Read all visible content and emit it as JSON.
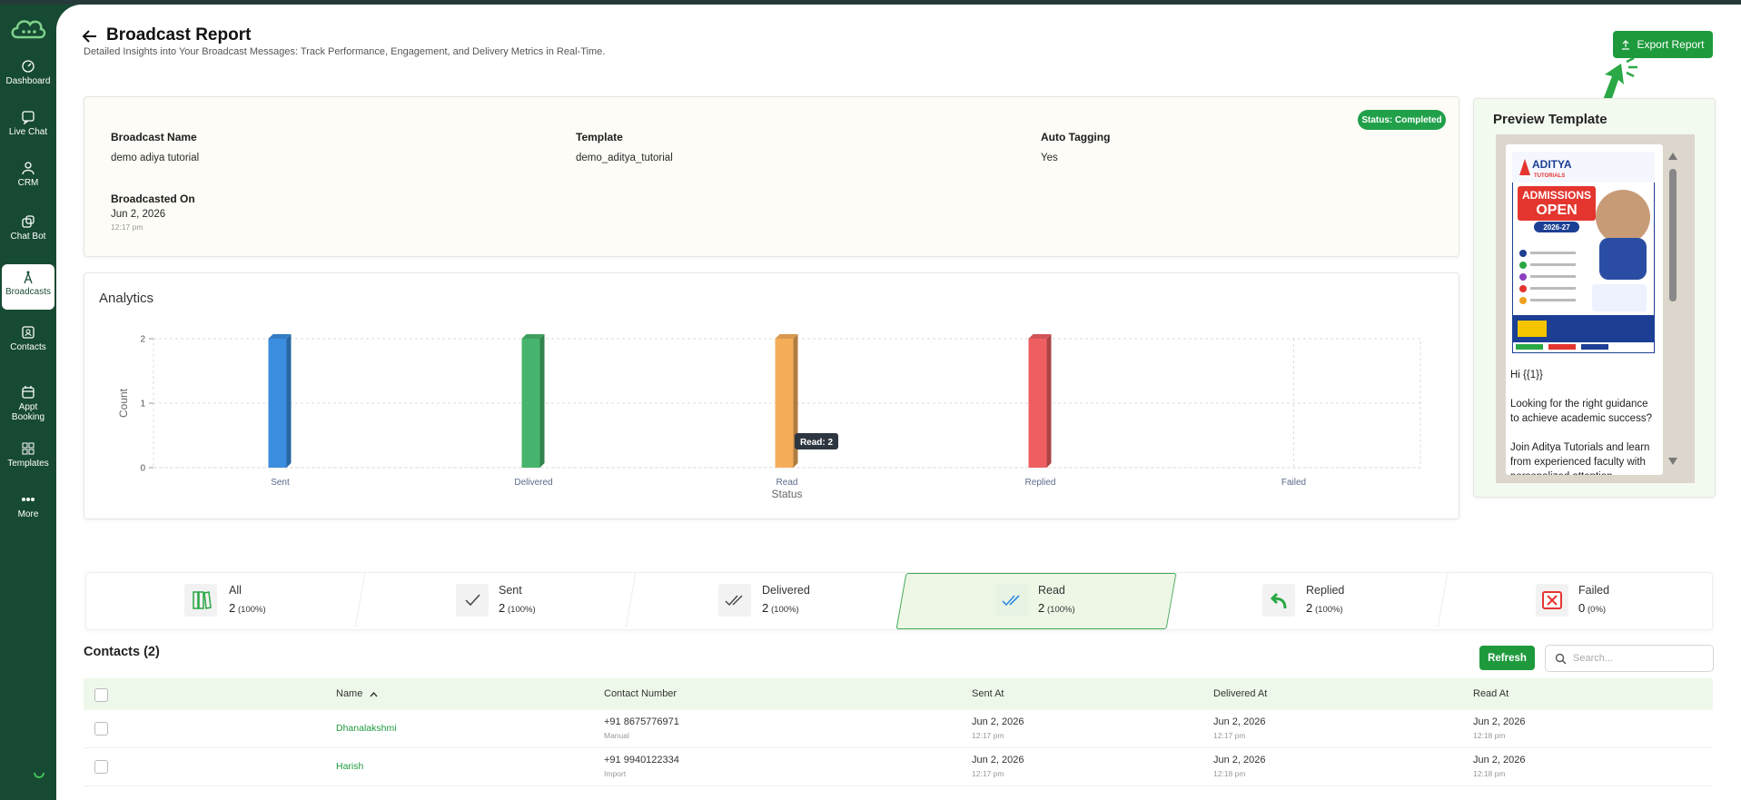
{
  "sidebar": {
    "items": [
      "Dashboard",
      "Live Chat",
      "CRM",
      "Chat Bot",
      "Broadcasts",
      "Contacts",
      "Appt Booking",
      "Templates",
      "More"
    ],
    "active": 4
  },
  "header": {
    "title": "Broadcast Report",
    "subtitle": "Detailed Insights into Your Broadcast Messages: Track Performance, Engagement, and Delivery Metrics in Real-Time.",
    "export_button": "Export Report"
  },
  "details": {
    "status": "Status: Completed",
    "fields": [
      {
        "label": "Broadcast Name",
        "value": "demo adiya tutorial"
      },
      {
        "label": "Template",
        "value": "demo_aditya_tutorial"
      },
      {
        "label": "Auto Tagging",
        "value": "Yes"
      },
      {
        "label": "Broadcasted On",
        "value": "Jun 2, 2026",
        "time": "12:17 pm"
      }
    ]
  },
  "chart_data": {
    "type": "bar",
    "title": "Analytics",
    "x_label": "Status",
    "y_label": "Count",
    "categories": [
      "Sent",
      "Delivered",
      "Read",
      "Replied",
      "Failed"
    ],
    "values": [
      2,
      2,
      2,
      2,
      0
    ],
    "colors": [
      "#3b8de0",
      "#46b46c",
      "#f5ad5a",
      "#ef5f62",
      "#9e9e9e"
    ],
    "ylim": [
      0,
      2
    ],
    "yticks": [
      0,
      1,
      2
    ],
    "grid": true,
    "annotation": "Read: 2"
  },
  "preview": {
    "title": "Preview Template",
    "poster": [
      "ADITYA",
      "TUTORIALS",
      "ADMISSIONS",
      "OPEN",
      "2026-27"
    ],
    "message": [
      "Hi {{1}}",
      "Looking for the right guidance to achieve academic success?",
      "Join Aditya Tutorials and learn from experienced faculty with personalized attention."
    ]
  },
  "tabs": [
    {
      "label": "All",
      "count": 2,
      "percent": "(100%)"
    },
    {
      "label": "Sent",
      "count": 2,
      "percent": "(100%)"
    },
    {
      "label": "Delivered",
      "count": 2,
      "percent": "(100%)"
    },
    {
      "label": "Read",
      "count": 2,
      "percent": "(100%)"
    },
    {
      "label": "Replied",
      "count": 2,
      "percent": "(100%)"
    },
    {
      "label": "Failed",
      "count": 0,
      "percent": "(0%)"
    }
  ],
  "active_tab": 3,
  "contacts": {
    "title": "Contacts (2)",
    "refresh_button": "Refresh",
    "search_placeholder": "Search...",
    "columns": [
      "Name",
      "Contact Number",
      "Sent At",
      "Delivered At",
      "Read At"
    ],
    "rows": [
      [
        "Dhanalakshmi",
        "+91 8675776971",
        "Manual",
        "Jun 2, 2026",
        "12:17 pm",
        "Jun 2, 2026",
        "12:17 pm",
        "Jun 2, 2026",
        "12:18 pm"
      ],
      [
        "Harish",
        "+91 9940122334",
        "Import",
        "Jun 2, 2026",
        "12:17 pm",
        "Jun 2, 2026",
        "12:18 pm",
        "Jun 2, 2026",
        "12:18 pm"
      ]
    ]
  }
}
